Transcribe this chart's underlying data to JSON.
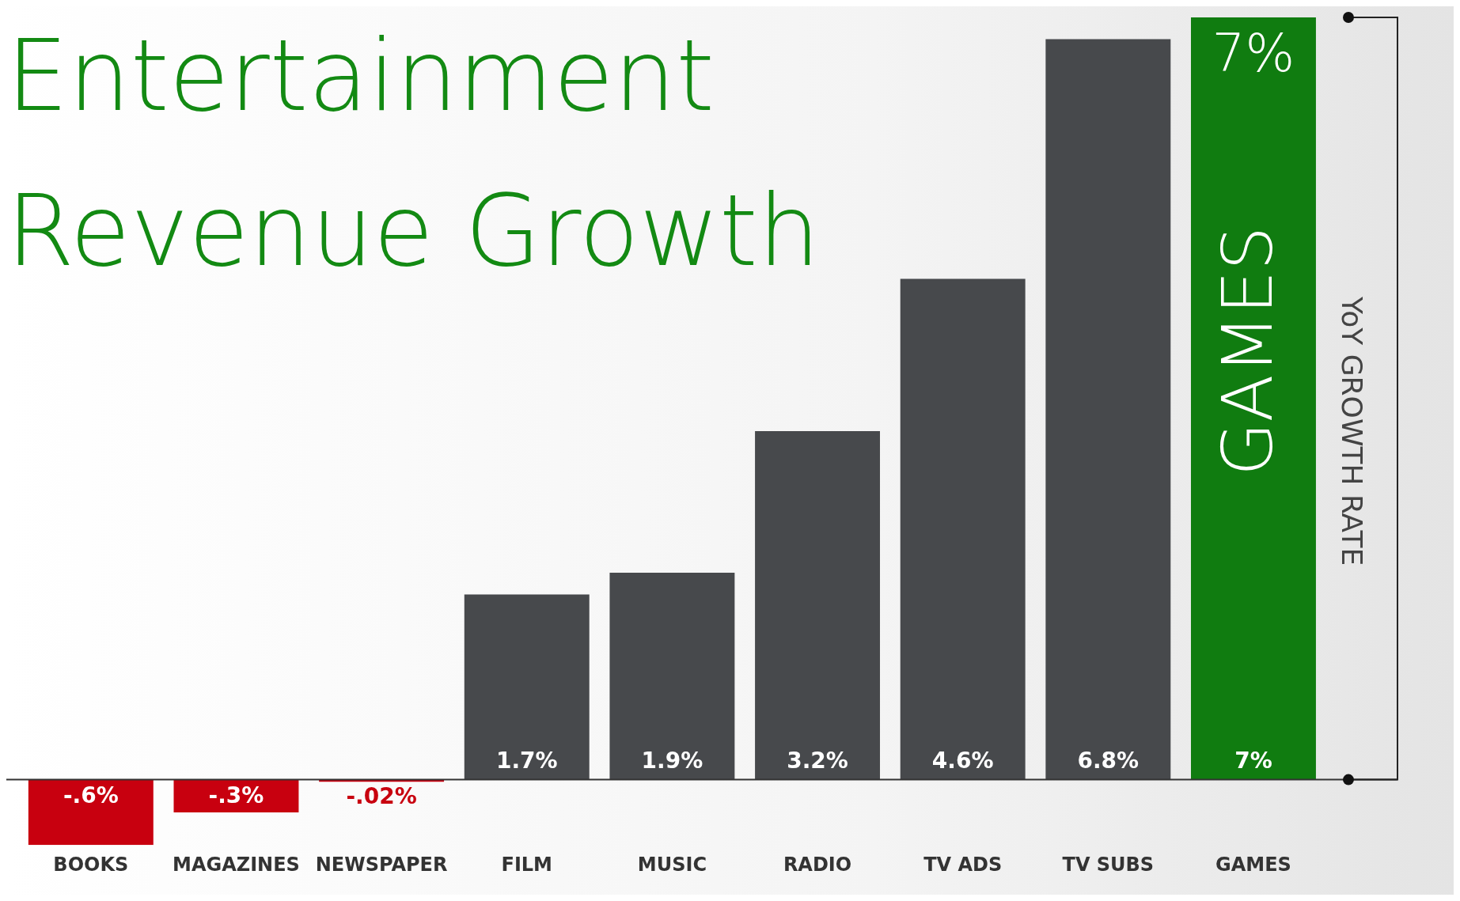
{
  "chart_data": {
    "type": "bar",
    "title": "Entertainment Revenue Growth",
    "ylabel": "YoY GROWTH RATE",
    "categories": [
      "BOOKS",
      "MAGAZINES",
      "NEWSPAPER",
      "FILM",
      "MUSIC",
      "RADIO",
      "TV ADS",
      "TV SUBS",
      "GAMES"
    ],
    "values": [
      -0.6,
      -0.3,
      -0.02,
      1.7,
      1.9,
      3.2,
      4.6,
      6.8,
      7
    ],
    "value_labels": [
      "-.6%",
      "-.3%",
      "-.02%",
      "1.7%",
      "1.9%",
      "3.2%",
      "4.6%",
      "6.8%",
      "7%"
    ],
    "colors": [
      "#c8000f",
      "#c8000f",
      "#c8000f",
      "#47494c",
      "#47494c",
      "#47494c",
      "#47494c",
      "#47494c",
      "#107c10"
    ],
    "annotations": [
      {
        "text": "7%",
        "x": "GAMES",
        "y": 7
      },
      "GAMES"
    ],
    "ylim": [
      -0.6,
      7
    ],
    "grid": false,
    "legend": false
  }
}
